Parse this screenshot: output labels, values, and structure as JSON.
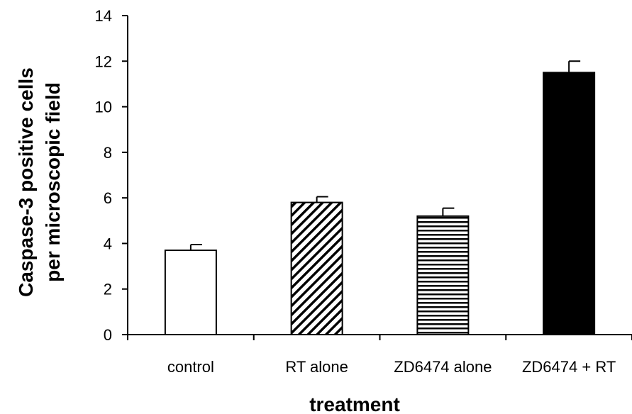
{
  "chart_data": {
    "type": "bar",
    "title": "",
    "xlabel": "treatment",
    "ylabel_lines": [
      "Caspase-3 positive cells",
      "per microscopic field"
    ],
    "ylim": [
      0,
      14
    ],
    "yticks": [
      0,
      2,
      4,
      6,
      8,
      10,
      12,
      14
    ],
    "ytick_labels": [
      "0",
      "2",
      "4",
      "6",
      "8",
      "10",
      "12",
      "14"
    ],
    "categories": [
      "control",
      "RT alone",
      "ZD6474 alone",
      "ZD6474 + RT"
    ],
    "values": [
      3.7,
      5.8,
      5.2,
      11.5
    ],
    "error_upper": [
      0.25,
      0.25,
      0.35,
      0.5
    ],
    "bar_fills": [
      "white",
      "diagonal-hatch",
      "horizontal-hatch",
      "black"
    ],
    "grid": false,
    "legend": "none"
  }
}
